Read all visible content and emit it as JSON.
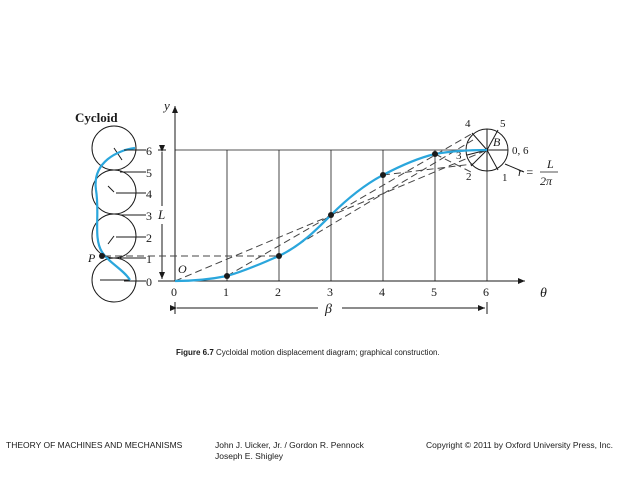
{
  "diagram": {
    "cycloid_label": "Cycloid",
    "y_axis_label": "y",
    "x_axis_label": "θ",
    "origin_label": "O",
    "point_p_label": "P",
    "lift_label": "L",
    "beta_label": "β",
    "circle_center_label": "B",
    "radius_label": "r =",
    "radius_numerator": "L",
    "radius_denominator": "2π",
    "y_ticks": [
      "0",
      "1",
      "2",
      "3",
      "4",
      "5",
      "6"
    ],
    "x_ticks": [
      "0",
      "1",
      "2",
      "3",
      "4",
      "5",
      "6"
    ],
    "circle_marks": {
      "m4": "4",
      "m5": "5",
      "m06": "0, 6",
      "m3": "3",
      "m2": "2",
      "m1": "1"
    },
    "curve_color": "#2aa6dc"
  },
  "caption": {
    "figure_number": "Figure 6.7",
    "text": " Cycloidal motion displacement diagram; graphical construction."
  },
  "footer": {
    "left": "THEORY OF MACHINES AND MECHANISMS",
    "middle_line1": "John J. Uicker, Jr. / Gordon R. Pennock",
    "middle_line2": "Joseph E. Shigley",
    "right": "Copyright © 2011 by Oxford University Press, Inc."
  }
}
